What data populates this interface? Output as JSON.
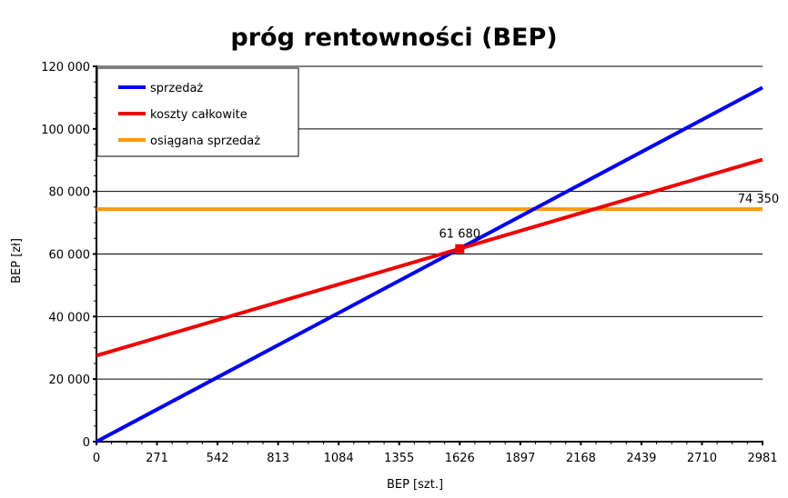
{
  "chart_data": {
    "type": "line",
    "title": "próg rentowności (BEP)",
    "xlabel": "BEP [szt.]",
    "ylabel": "BEP [zł]",
    "x_tick_labels": [
      "0",
      "271",
      "542",
      "813",
      "1084",
      "1355",
      "1626",
      "1897",
      "2168",
      "2439",
      "2710",
      "2981"
    ],
    "y_tick_labels": [
      "0",
      "20 000",
      "40 000",
      "60 000",
      "80 000",
      "100 000",
      "120 000"
    ],
    "y_tick_values": [
      0,
      20000,
      40000,
      60000,
      80000,
      100000,
      120000
    ],
    "xlim": [
      0,
      2981
    ],
    "ylim": [
      0,
      120000
    ],
    "grid": "horizontal",
    "legend": "top-left",
    "series": [
      {
        "name": "sprzedaż",
        "color": "#0000ee",
        "x": [
          0,
          2981
        ],
        "y": [
          0,
          113200
        ]
      },
      {
        "name": "koszty całkowite",
        "color": "#ee0000",
        "x": [
          0,
          2981
        ],
        "y": [
          27500,
          90200
        ]
      },
      {
        "name": "osiągana sprzedaż",
        "color": "#ff9900",
        "x": [
          0,
          2981
        ],
        "y": [
          74350,
          74350
        ]
      }
    ],
    "annotations": [
      {
        "text": "61 680",
        "x": 1626,
        "y": 61680,
        "marker": true,
        "marker_color": "#ee0000"
      },
      {
        "text": "74 350",
        "x": 2710,
        "y": 74350,
        "marker": false
      }
    ]
  }
}
